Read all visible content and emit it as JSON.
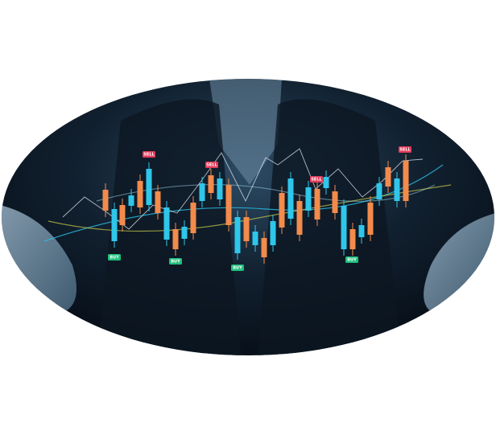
{
  "sell_tags": [
    "SELL",
    "SELL",
    "SELL",
    "SELL"
  ],
  "buy_tags": [
    "BUY",
    "BUY",
    "BUY",
    "BUY"
  ]
}
